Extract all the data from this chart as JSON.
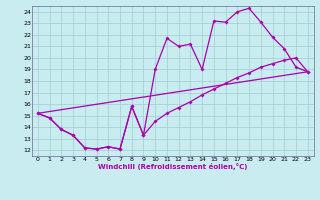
{
  "xlabel": "Windchill (Refroidissement éolien,°C)",
  "bg_color": "#c8ecf0",
  "grid_color": "#a0ccd4",
  "line_color": "#aa00aa",
  "markersize": 2.0,
  "linewidth": 0.9,
  "xlim": [
    -0.5,
    23.5
  ],
  "ylim": [
    11.5,
    24.5
  ],
  "xticks": [
    0,
    1,
    2,
    3,
    4,
    5,
    6,
    7,
    8,
    9,
    10,
    11,
    12,
    13,
    14,
    15,
    16,
    17,
    18,
    19,
    20,
    21,
    22,
    23
  ],
  "yticks": [
    12,
    13,
    14,
    15,
    16,
    17,
    18,
    19,
    20,
    21,
    22,
    23,
    24
  ],
  "line1_x": [
    0,
    1,
    2,
    3,
    4,
    5,
    6,
    7,
    8,
    9,
    10,
    11,
    12,
    13,
    14,
    15,
    16,
    17,
    18,
    19,
    20,
    21,
    22,
    23
  ],
  "line1_y": [
    15.2,
    14.8,
    13.8,
    13.3,
    12.2,
    12.1,
    12.3,
    12.1,
    15.8,
    13.3,
    19.0,
    21.7,
    21.0,
    21.2,
    19.0,
    23.2,
    23.1,
    24.0,
    24.3,
    23.1,
    21.8,
    20.8,
    19.2,
    18.8
  ],
  "line2_x": [
    0,
    1,
    2,
    3,
    4,
    5,
    6,
    7,
    8,
    9,
    10,
    11,
    12,
    13,
    14,
    15,
    16,
    17,
    18,
    19,
    20,
    21,
    22,
    23
  ],
  "line2_y": [
    15.2,
    14.8,
    13.8,
    13.3,
    12.2,
    12.1,
    12.3,
    12.1,
    15.8,
    13.3,
    14.5,
    15.2,
    15.7,
    16.2,
    16.8,
    17.3,
    17.8,
    18.3,
    18.7,
    19.2,
    19.5,
    19.8,
    20.0,
    18.8
  ],
  "line3_x": [
    0,
    23
  ],
  "line3_y": [
    15.2,
    18.8
  ]
}
